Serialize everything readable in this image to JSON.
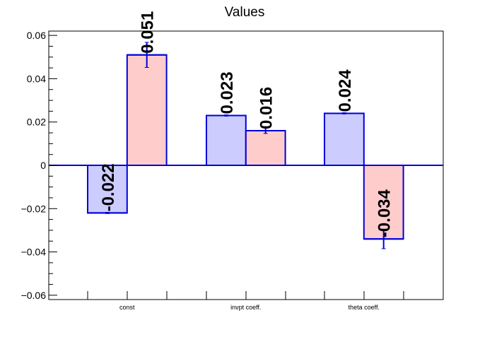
{
  "chart_data": {
    "type": "bar",
    "title": "Values",
    "xlabel": "",
    "ylabel": "",
    "ylim": [
      -0.062,
      0.062
    ],
    "yticks": [
      {
        "value": 0.06,
        "label": "0.06"
      },
      {
        "value": 0.04,
        "label": "0.04"
      },
      {
        "value": 0.02,
        "label": "0.02"
      },
      {
        "value": 0,
        "label": "0"
      },
      {
        "value": -0.02,
        "label": "−0.02"
      },
      {
        "value": -0.04,
        "label": "−0.04"
      },
      {
        "value": -0.06,
        "label": "−0.06"
      }
    ],
    "categories": [
      "const",
      "invpt coeff.",
      "theta coeff."
    ],
    "series": [
      {
        "values": [
          -0.022,
          0.023,
          0.024
        ],
        "labels": [
          "-0.022",
          "0.023",
          "0.024"
        ],
        "errors": [
          0.0003,
          0.0003,
          0.0003
        ],
        "fill": "#ccccff",
        "stroke": "#0000dd"
      },
      {
        "values": [
          0.051,
          0.016,
          -0.034
        ],
        "labels": [
          "0.051",
          "0.016",
          "-0.034"
        ],
        "errors": [
          0.0058,
          0.0013,
          0.0045
        ],
        "fill": "#ffcccc",
        "stroke": "#0000dd"
      }
    ],
    "grid": false,
    "legend": "none"
  }
}
